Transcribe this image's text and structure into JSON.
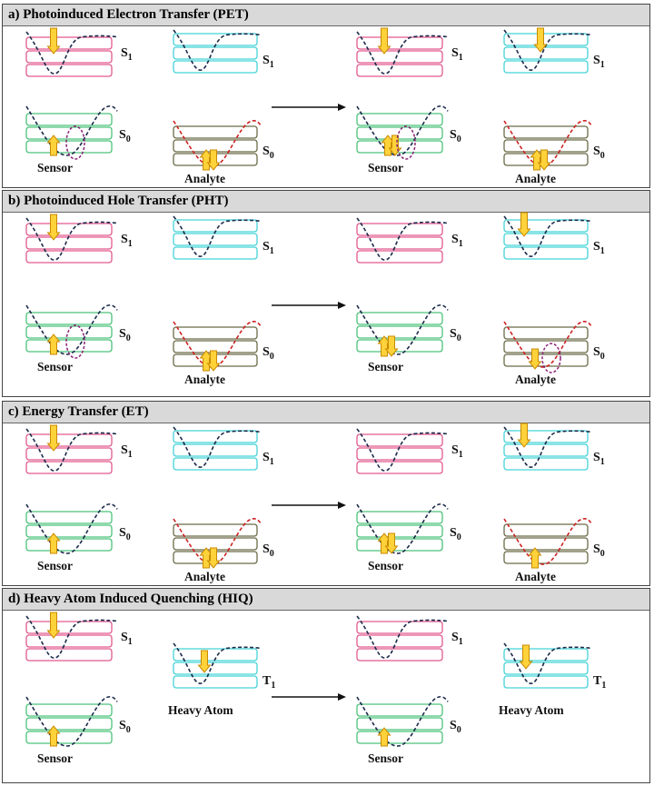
{
  "colors": {
    "excited_box": "#e2598e",
    "t1_box": "#45d3d8",
    "ground_box": "#4cc27a",
    "analyte_box": "#6b6b48",
    "sensor_curve": "#1b2a4a",
    "analyte_curve": "#cc2222",
    "ellipse": "#8a2277",
    "arrow_fill": "#ffd23a",
    "arrow_stroke": "#c98a00",
    "header_bg": "#d9d9d9"
  },
  "panels": [
    {
      "title": "a) Photoinduced Electron Transfer (PET)",
      "sensor_label": "Sensor",
      "partner_label": "Analyte",
      "s1": "S",
      "s1_sub": "1",
      "s0": "S",
      "s0_sub": "0"
    },
    {
      "title": "b) Photoinduced Hole Transfer (PHT)",
      "sensor_label": "Sensor",
      "partner_label": "Analyte",
      "s1": "S",
      "s1_sub": "1",
      "s0": "S",
      "s0_sub": "0"
    },
    {
      "title": "c) Energy Transfer (ET)",
      "sensor_label": "Sensor",
      "partner_label": "Analyte",
      "s1": "S",
      "s1_sub": "1",
      "s0": "S",
      "s0_sub": "0"
    },
    {
      "title": "d) Heavy Atom Induced Quenching (HIQ)",
      "sensor_label": "Sensor",
      "partner_label": "Heavy Atom",
      "s1": "S",
      "s1_sub": "1",
      "s0": "S",
      "s0_sub": "0",
      "t1": "T",
      "t1_sub": "1"
    }
  ],
  "icons": [
    "down-arrow-icon",
    "up-arrow-icon",
    "electron-pair-icon",
    "transition-arrow-icon",
    "interaction-ellipse-icon"
  ]
}
